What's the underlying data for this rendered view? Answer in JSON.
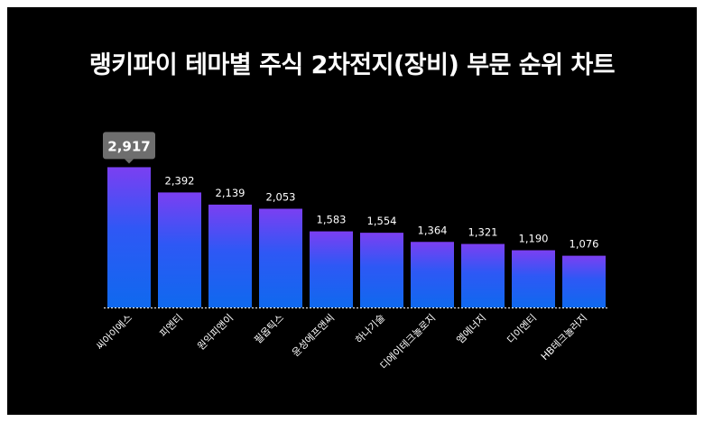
{
  "title": "랭키파이 테마별 주식 2차전지(장비) 부문 순위 차트",
  "colors": {
    "background": "#000000",
    "bar_top": "#7b3ff2",
    "bar_mid": "#2e58f5",
    "bar_bottom": "#0f69ee",
    "highlight_label_bg": "#6e6e6e",
    "text": "#ffffff"
  },
  "chart_data": {
    "type": "bar",
    "categories": [
      "씨아이에스",
      "피엔티",
      "원익피앤이",
      "필옵틱스",
      "윤성에프앤씨",
      "하나기술",
      "디에이테크놀로지",
      "엠에너지",
      "디이엔티",
      "HB테크놀러지"
    ],
    "values": [
      2917,
      2392,
      2139,
      2053,
      1583,
      1554,
      1364,
      1321,
      1190,
      1076
    ],
    "value_labels": [
      "2,917",
      "2,392",
      "2,139",
      "2,053",
      "1,583",
      "1,554",
      "1,364",
      "1,321",
      "1,190",
      "1,076"
    ],
    "highlighted_index": 0,
    "ylim": [
      0,
      3150
    ],
    "grid": false,
    "xlabel": "",
    "ylabel": ""
  }
}
